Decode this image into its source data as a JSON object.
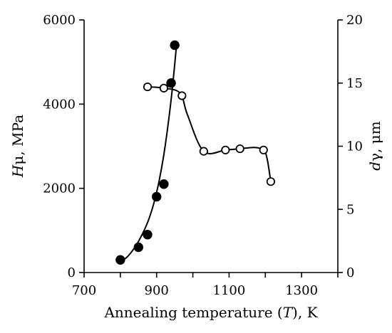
{
  "chart_data": {
    "type": "scatter",
    "xlabel_parts": [
      "Annealing temperature (",
      "T",
      "), K"
    ],
    "ylabel_left_parts": [
      "H",
      "μ",
      ", MPa"
    ],
    "ylabel_right_parts": [
      "d",
      "γ",
      ", μm"
    ],
    "x_ticks": [
      "700",
      "900",
      "1100",
      "1300"
    ],
    "y_left_ticks": [
      "0",
      "2000",
      "4000",
      "6000"
    ],
    "y_right_ticks": [
      "0",
      "5",
      "10",
      "15",
      "20"
    ],
    "xlim": [
      700,
      1400
    ],
    "ylim_left": [
      0,
      6000
    ],
    "ylim_right": [
      0,
      20
    ],
    "grid": false,
    "series": [
      {
        "axis": "left",
        "marker": "filled-circle",
        "x": [
          800,
          850,
          875,
          900,
          920,
          940,
          950
        ],
        "y": [
          300,
          600,
          900,
          1800,
          2100,
          4500,
          5400
        ],
        "curve_x": [
          800,
          820,
          840,
          860,
          880,
          900,
          920,
          940,
          955
        ],
        "curve_y": [
          250,
          380,
          600,
          900,
          1300,
          1900,
          2800,
          4100,
          5400
        ]
      },
      {
        "axis": "right",
        "marker": "open-circle",
        "x": [
          875,
          920,
          970,
          1030,
          1090,
          1130,
          1195,
          1215
        ],
        "y": [
          14.7,
          14.6,
          14.0,
          9.6,
          9.7,
          9.8,
          9.7,
          7.2
        ],
        "curve_x": [
          875,
          920,
          965,
          985,
          1030,
          1090,
          1130,
          1170,
          1195,
          1205,
          1215
        ],
        "curve_y": [
          14.7,
          14.6,
          14.2,
          12.5,
          9.6,
          9.7,
          9.8,
          9.9,
          9.7,
          9.0,
          7.2
        ]
      }
    ]
  }
}
